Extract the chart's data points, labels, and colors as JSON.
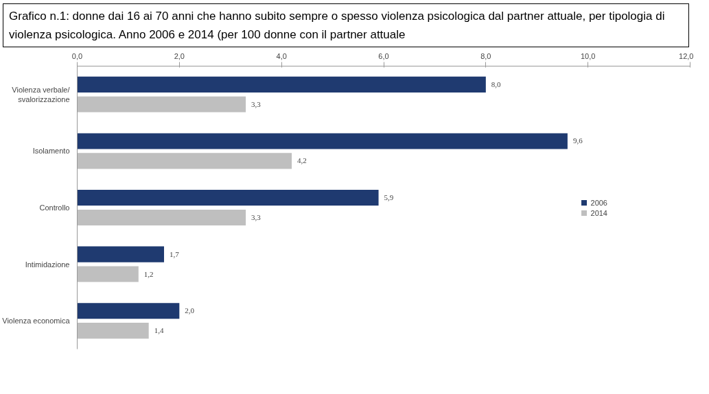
{
  "chart_data": {
    "type": "bar",
    "orientation": "horizontal",
    "title": "Grafico n.1: donne dai 16 ai 70 anni che hanno subito sempre o spesso violenza psicologica dal partner attuale, per tipologia di violenza psicologica. Anno 2006 e 2014 (per 100 donne con il partner attuale",
    "categories": [
      "Violenza verbale/ svalorizzazione",
      "Isolamento",
      "Controllo",
      "Intimidazione",
      "Violenza economica"
    ],
    "series": [
      {
        "name": "2006",
        "color": "#1f3a70",
        "values": [
          8.0,
          9.6,
          5.9,
          1.7,
          2.0
        ],
        "value_labels": [
          "8,0",
          "9,6",
          "5,9",
          "1,7",
          "2,0"
        ]
      },
      {
        "name": "2014",
        "color": "#bfbfbf",
        "values": [
          3.3,
          4.2,
          3.3,
          1.2,
          1.4
        ],
        "value_labels": [
          "3,3",
          "4,2",
          "3,3",
          "1,2",
          "1,4"
        ]
      }
    ],
    "xlim": [
      0,
      12
    ],
    "xticks": [
      {
        "value": 0,
        "label": "0,0"
      },
      {
        "value": 2,
        "label": "2,0"
      },
      {
        "value": 4,
        "label": "4,0"
      },
      {
        "value": 6,
        "label": "6,0"
      },
      {
        "value": 8,
        "label": "8,0"
      },
      {
        "value": 10,
        "label": "10,0"
      },
      {
        "value": 12,
        "label": "12,0"
      }
    ],
    "grid": false,
    "legend": "right"
  }
}
